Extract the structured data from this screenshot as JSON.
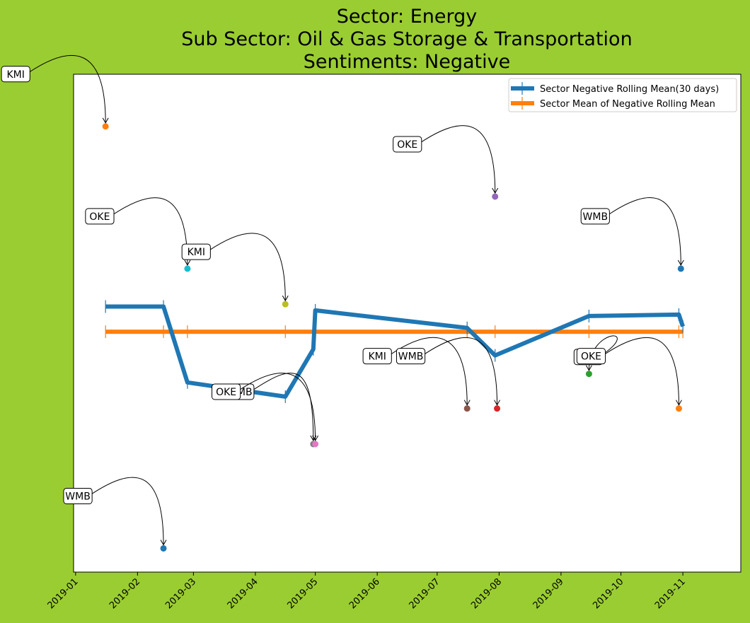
{
  "chart_data": {
    "type": "line",
    "title": [
      "Sector:  Energy",
      "Sub Sector:  Oil & Gas Storage & Transportation",
      "Sentiments:  Negative"
    ],
    "xlabel": "",
    "ylabel": "",
    "x_axis": {
      "type": "date",
      "range": [
        "2018-12-31",
        "2019-11-30"
      ],
      "tick_labels": [
        "2019-01",
        "2019-02",
        "2019-03",
        "2019-04",
        "2019-05",
        "2019-06",
        "2019-07",
        "2019-08",
        "2019-09",
        "2019-10",
        "2019-11"
      ],
      "tick_dates": [
        "2019-01-01",
        "2019-02-01",
        "2019-03-01",
        "2019-04-01",
        "2019-05-01",
        "2019-06-01",
        "2019-07-01",
        "2019-08-01",
        "2019-09-01",
        "2019-10-01",
        "2019-11-01"
      ]
    },
    "y_axis": {
      "range": [
        -1.05,
        0.0
      ],
      "tick_labels_shown": false
    },
    "grid": false,
    "legend": {
      "position": "top-right"
    },
    "series": [
      {
        "name": "Sector Negative Rolling Mean(30 days)",
        "color": "#1f77b4",
        "marker": "|",
        "points": [
          [
            "2019-01-16",
            -0.49
          ],
          [
            "2019-02-14",
            -0.49
          ],
          [
            "2019-02-26",
            -0.65
          ],
          [
            "2019-04-16",
            -0.68
          ],
          [
            "2019-04-30",
            -0.58
          ],
          [
            "2019-05-01",
            -0.498
          ],
          [
            "2019-07-16",
            -0.535
          ],
          [
            "2019-07-30",
            -0.593
          ],
          [
            "2019-09-15",
            -0.51
          ],
          [
            "2019-10-30",
            -0.507
          ],
          [
            "2019-11-01",
            -0.532
          ]
        ]
      },
      {
        "name": "Sector Mean of Negative Rolling Mean",
        "color": "#ff7f0e",
        "marker": "|",
        "points": [
          [
            "2019-01-16",
            -0.543
          ],
          [
            "2019-02-14",
            -0.543
          ],
          [
            "2019-02-26",
            -0.543
          ],
          [
            "2019-04-16",
            -0.543
          ],
          [
            "2019-05-01",
            -0.543
          ],
          [
            "2019-07-16",
            -0.543
          ],
          [
            "2019-07-30",
            -0.543
          ],
          [
            "2019-09-15",
            -0.543
          ],
          [
            "2019-10-30",
            -0.543
          ],
          [
            "2019-11-01",
            -0.543
          ]
        ]
      }
    ],
    "points": [
      {
        "label": "KMI",
        "date": "2019-01-16",
        "value": -0.11,
        "color": "#ff7f0e"
      },
      {
        "label": "WMB",
        "date": "2019-02-14",
        "value": -1.0,
        "color": "#1f77b4"
      },
      {
        "label": "OKE",
        "date": "2019-02-26",
        "value": -0.41,
        "color": "#17becf"
      },
      {
        "label": "KMI",
        "date": "2019-04-16",
        "value": -0.485,
        "color": "#bcbd22"
      },
      {
        "label": "WMB",
        "date": "2019-04-30",
        "value": -0.78,
        "color": "#7f7f7f"
      },
      {
        "label": "OKE",
        "date": "2019-05-01",
        "value": -0.78,
        "color": "#e377c2"
      },
      {
        "label": "KMI",
        "date": "2019-07-16",
        "value": -0.705,
        "color": "#8c564b"
      },
      {
        "label": "OKE",
        "date": "2019-07-30",
        "value": -0.258,
        "color": "#9467bd"
      },
      {
        "label": "WMB",
        "date": "2019-07-31",
        "value": -0.705,
        "color": "#d62728"
      },
      {
        "label": "KMI",
        "date": "2019-09-15",
        "value": -0.632,
        "color": "#2ca02c"
      },
      {
        "label": "WMB",
        "date": "2019-10-31",
        "value": -0.41,
        "color": "#1f77b4"
      },
      {
        "label": "OKE",
        "date": "2019-10-30",
        "value": -0.705,
        "color": "#ff7f0e"
      }
    ]
  }
}
